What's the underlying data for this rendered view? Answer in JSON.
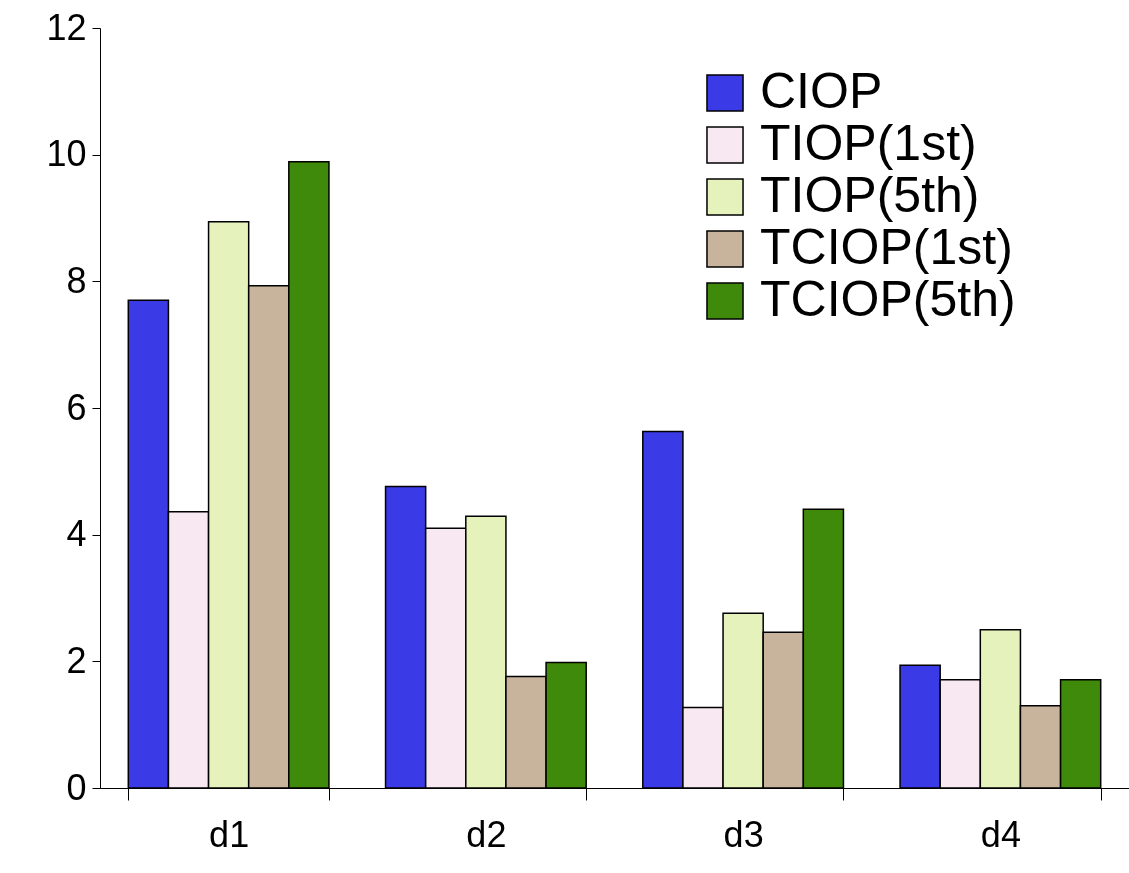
{
  "chart_data": {
    "type": "bar",
    "categories": [
      "d1",
      "d2",
      "d3",
      "d4"
    ],
    "series": [
      {
        "name": "CIOP",
        "color": "#3a3ae6",
        "values": [
          7.7,
          4.76,
          5.63,
          1.94
        ]
      },
      {
        "name": "TIOP(1st)",
        "color": "#f8e8f2",
        "values": [
          4.36,
          4.1,
          1.27,
          1.71
        ]
      },
      {
        "name": "TIOP(5th)",
        "color": "#e6f2bc",
        "values": [
          8.94,
          4.29,
          2.76,
          2.5
        ]
      },
      {
        "name": "TCIOP(1st)",
        "color": "#c8b49c",
        "values": [
          7.93,
          1.76,
          2.46,
          1.3
        ]
      },
      {
        "name": "TCIOP(5th)",
        "color": "#3f8a0a",
        "values": [
          9.89,
          1.98,
          4.4,
          1.71
        ]
      }
    ],
    "ylim": [
      0,
      12
    ],
    "yticks": [
      0,
      2,
      4,
      6,
      8,
      10,
      12
    ],
    "grid": false,
    "legend": "top right"
  }
}
